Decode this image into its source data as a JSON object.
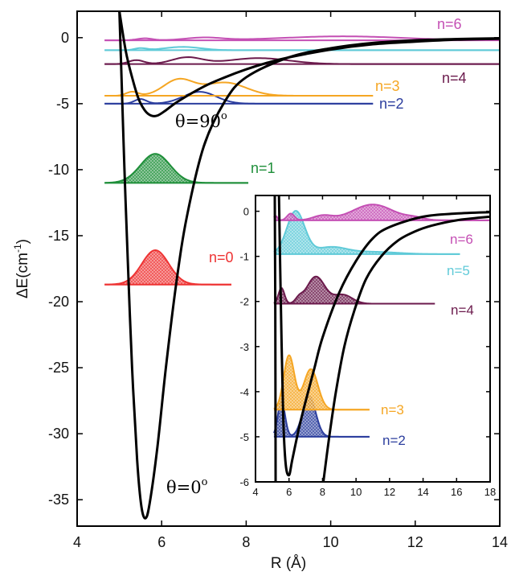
{
  "chart_data": [
    {
      "type": "line",
      "xlabel": "R (Å)",
      "ylabel": "ΔE(cm",
      "ylabel_sup": "-1",
      "ylabel_end": ")",
      "xlim": [
        4,
        14
      ],
      "ylim": [
        -37,
        2
      ],
      "x_ticks": [
        4,
        6,
        8,
        10,
        12,
        14
      ],
      "y_ticks": [
        0,
        -5,
        -10,
        -15,
        -20,
        -25,
        -30,
        -35
      ],
      "grid": false,
      "curves": [
        {
          "label": "θ=0°",
          "color": "#000000",
          "points": [
            [
              5.0,
              2
            ],
            [
              5.05,
              -3
            ],
            [
              5.12,
              -10
            ],
            [
              5.2,
              -17
            ],
            [
              5.3,
              -25
            ],
            [
              5.42,
              -32
            ],
            [
              5.52,
              -35.5
            ],
            [
              5.62,
              -36.4
            ],
            [
              5.72,
              -35.2
            ],
            [
              5.9,
              -31
            ],
            [
              6.1,
              -25
            ],
            [
              6.35,
              -18.5
            ],
            [
              6.6,
              -13.5
            ],
            [
              7.0,
              -8.2
            ],
            [
              7.5,
              -4.8
            ],
            [
              8.0,
              -3.0
            ],
            [
              9.0,
              -1.5
            ],
            [
              10.0,
              -0.8
            ],
            [
              11.0,
              -0.4
            ],
            [
              12.0,
              -0.2
            ],
            [
              13.0,
              -0.1
            ],
            [
              14.0,
              -0.05
            ]
          ]
        },
        {
          "label": "θ=90°",
          "color": "#000000",
          "points": [
            [
              5.0,
              2
            ],
            [
              5.15,
              -1
            ],
            [
              5.3,
              -3
            ],
            [
              5.45,
              -4.6
            ],
            [
              5.6,
              -5.5
            ],
            [
              5.75,
              -5.9
            ],
            [
              5.9,
              -5.9
            ],
            [
              6.1,
              -5.5
            ],
            [
              6.4,
              -4.8
            ],
            [
              7.0,
              -3.7
            ],
            [
              7.5,
              -3.0
            ],
            [
              8.0,
              -2.4
            ],
            [
              8.5,
              -1.9
            ],
            [
              9.0,
              -1.5
            ],
            [
              10.0,
              -0.9
            ],
            [
              11.0,
              -0.5
            ],
            [
              12.0,
              -0.3
            ],
            [
              13.0,
              -0.15
            ],
            [
              14.0,
              -0.08
            ]
          ]
        }
      ],
      "levels": [
        {
          "label": "n=0",
          "energy": -18.7,
          "color": "#ee3333",
          "filled": true,
          "xmin": 4.65,
          "xmax": 7.65,
          "peaks": [
            [
              5.85,
              2.6,
              0.45
            ]
          ]
        },
        {
          "label": "n=1",
          "energy": -11.0,
          "color": "#1f8f3a",
          "filled": true,
          "xmin": 4.65,
          "xmax": 8.05,
          "peaks": [
            [
              5.85,
              2.2,
              0.5
            ]
          ]
        },
        {
          "label": "n=2",
          "energy": -5.0,
          "color": "#2c3e9e",
          "filled": false,
          "xmin": 4.65,
          "xmax": 11.0,
          "peaks": [
            [
              5.5,
              0.35,
              0.2
            ],
            [
              6.9,
              0.9,
              0.55
            ]
          ]
        },
        {
          "label": "n=3",
          "energy": -4.4,
          "color": "#f5a623",
          "filled": false,
          "xmin": 4.65,
          "xmax": 11.0,
          "peaks": [
            [
              5.3,
              0.3,
              0.2
            ],
            [
              6.4,
              1.2,
              0.5
            ],
            [
              7.5,
              1.0,
              0.7
            ]
          ]
        },
        {
          "label": "n=4",
          "energy": -2.0,
          "color": "#6b1a4c",
          "filled": false,
          "xmin": 4.65,
          "xmax": 14.0,
          "peaks": [
            [
              5.4,
              0.3,
              0.25
            ],
            [
              6.6,
              0.5,
              0.5
            ],
            [
              8.3,
              0.45,
              1.0
            ]
          ]
        },
        {
          "label": "n=5",
          "energy": -0.95,
          "color": "#5fcad8",
          "filled": false,
          "xmin": 4.65,
          "xmax": 14.0,
          "peaks": [
            [
              5.5,
              0.15,
              0.2
            ],
            [
              6.5,
              0.25,
              0.6
            ]
          ]
        },
        {
          "label": "n=6",
          "energy": -0.2,
          "color": "#c44fb4",
          "filled": false,
          "xmin": 4.65,
          "xmax": 14.0,
          "peaks": [
            [
              5.6,
              0.15,
              0.25
            ],
            [
              7.0,
              0.2,
              0.6
            ],
            [
              10.3,
              0.3,
              2.0
            ]
          ]
        }
      ],
      "annotations": [
        "θ=90",
        "θ=0"
      ],
      "annotation_sup": "o"
    },
    {
      "type": "line",
      "role": "inset",
      "xlim": [
        4,
        18
      ],
      "ylim": [
        -6,
        0.35
      ],
      "x_ticks": [
        4,
        6,
        8,
        10,
        12,
        14,
        16,
        18
      ],
      "y_ticks": [
        0,
        -1,
        -2,
        -3,
        -4,
        -5,
        -6
      ],
      "grid": false,
      "curves": [
        {
          "label": "θ=0°",
          "color": "#000000",
          "points": [
            [
              5.15,
              0.35
            ],
            [
              5.18,
              -2
            ],
            [
              5.2,
              -6
            ]
          ]
        },
        {
          "label": "θ=0° (long range)",
          "color": "#000000",
          "points": [
            [
              8.05,
              -6
            ],
            [
              8.4,
              -5
            ],
            [
              8.8,
              -4
            ],
            [
              9.3,
              -3
            ],
            [
              9.9,
              -2.2
            ],
            [
              10.6,
              -1.5
            ],
            [
              11.5,
              -1.0
            ],
            [
              12.5,
              -0.65
            ],
            [
              13.5,
              -0.45
            ],
            [
              14.5,
              -0.32
            ],
            [
              16,
              -0.2
            ],
            [
              18,
              -0.12
            ]
          ]
        },
        {
          "label": "θ=90°",
          "color": "#000000",
          "points": [
            [
              5.4,
              0.35
            ],
            [
              5.5,
              -1.8
            ],
            [
              5.65,
              -4.5
            ],
            [
              5.8,
              -5.6
            ],
            [
              6.0,
              -5.85
            ],
            [
              6.2,
              -5.5
            ],
            [
              6.6,
              -4.8
            ],
            [
              7.0,
              -4.2
            ],
            [
              7.5,
              -3.5
            ],
            [
              8.0,
              -2.8
            ],
            [
              9.0,
              -1.8
            ],
            [
              10.0,
              -1.1
            ],
            [
              11.0,
              -0.6
            ],
            [
              12.0,
              -0.35
            ],
            [
              14.0,
              -0.12
            ],
            [
              16,
              -0.05
            ],
            [
              18,
              -0.02
            ]
          ]
        }
      ],
      "levels": [
        {
          "label": "n=2",
          "energy": -5.0,
          "color": "#2c3e9e",
          "filled": true,
          "xmin": 5.1,
          "xmax": 10.8,
          "peaks": [
            [
              5.55,
              0.8,
              0.3
            ],
            [
              7.2,
              0.9,
              0.55
            ]
          ]
        },
        {
          "label": "n=3",
          "energy": -4.4,
          "color": "#f5a623",
          "filled": true,
          "xmin": 5.1,
          "xmax": 10.8,
          "peaks": [
            [
              6.0,
              1.2,
              0.45
            ],
            [
              7.3,
              0.9,
              0.6
            ]
          ]
        },
        {
          "label": "n=4",
          "energy": -2.05,
          "color": "#6b1a4c",
          "filled": true,
          "xmin": 5.1,
          "xmax": 14.7,
          "peaks": [
            [
              5.55,
              0.35,
              0.25
            ],
            [
              6.6,
              0.1,
              0.3
            ],
            [
              7.6,
              0.6,
              0.75
            ],
            [
              9.2,
              0.2,
              0.8
            ]
          ]
        },
        {
          "label": "n=5",
          "energy": -0.95,
          "color": "#5fcad8",
          "filled": true,
          "xmin": 5.1,
          "xmax": 16.2,
          "peaks": [
            [
              6.4,
              0.95,
              0.75
            ],
            [
              8.5,
              0.15,
              1.3
            ],
            [
              11.0,
              0.05,
              2.0
            ]
          ]
        },
        {
          "label": "n=6",
          "energy": -0.2,
          "color": "#c44fb4",
          "filled": true,
          "xmin": 5.1,
          "xmax": 18.0,
          "peaks": [
            [
              5.2,
              0.1,
              0.15
            ],
            [
              6.1,
              0.15,
              0.3
            ],
            [
              8.0,
              0.1,
              0.8
            ],
            [
              11.0,
              0.35,
              1.7
            ],
            [
              13.5,
              0.05,
              0.8
            ]
          ]
        }
      ]
    }
  ]
}
